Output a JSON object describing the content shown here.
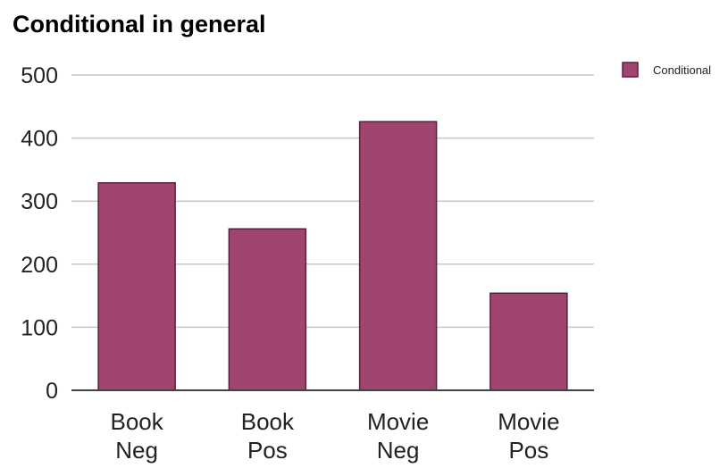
{
  "chart_data": {
    "type": "bar",
    "title": "Conditional in general",
    "categories": [
      [
        "Book",
        "Neg"
      ],
      [
        "Book",
        "Pos"
      ],
      [
        "Movie",
        "Neg"
      ],
      [
        "Movie",
        "Pos"
      ]
    ],
    "series": [
      {
        "name": "Conditional",
        "values": [
          329,
          256,
          426,
          154
        ],
        "color": "#a0456f"
      }
    ],
    "ylim": [
      0,
      500
    ],
    "yticks": [
      0,
      100,
      200,
      300,
      400,
      500
    ],
    "grid": true,
    "legend": "top-right",
    "xlabel": "",
    "ylabel": ""
  }
}
